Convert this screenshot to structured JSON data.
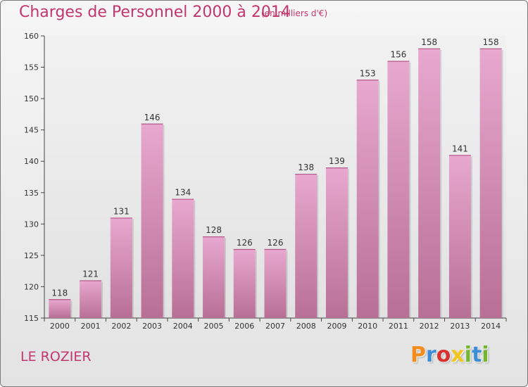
{
  "header": {
    "title": "Charges de Personnel 2000 à 2014",
    "subtitle": "(en milliers d'€)"
  },
  "commune": "LE ROZIER",
  "logo": {
    "text": "Proxiti",
    "letters": [
      "P",
      "r",
      "o",
      "x",
      "i",
      "t",
      "i"
    ],
    "colors": [
      "#f28c1e",
      "#3c8dd6",
      "#d8322e",
      "#f2c51e",
      "#74b72e",
      "#3c8dd6",
      "#74b72e"
    ]
  },
  "colors": {
    "bar_top": "#e8a8cf",
    "bar_bottom": "#b86f96",
    "accent": "#c2366e"
  },
  "chart_data": {
    "type": "bar",
    "title": "Charges de Personnel 2000 à 2014",
    "subtitle": "(en milliers d'€)",
    "categories": [
      "2000",
      "2001",
      "2002",
      "2003",
      "2004",
      "2005",
      "2006",
      "2007",
      "2008",
      "2009",
      "2010",
      "2011",
      "2012",
      "2013",
      "2014"
    ],
    "values": [
      118,
      121,
      131,
      146,
      134,
      128,
      126,
      126,
      138,
      139,
      153,
      156,
      158,
      141,
      158
    ],
    "ylim": [
      115,
      160
    ],
    "yticks": [
      115,
      120,
      125,
      130,
      135,
      140,
      145,
      150,
      155,
      160
    ],
    "grid": false,
    "data_labels": true
  }
}
